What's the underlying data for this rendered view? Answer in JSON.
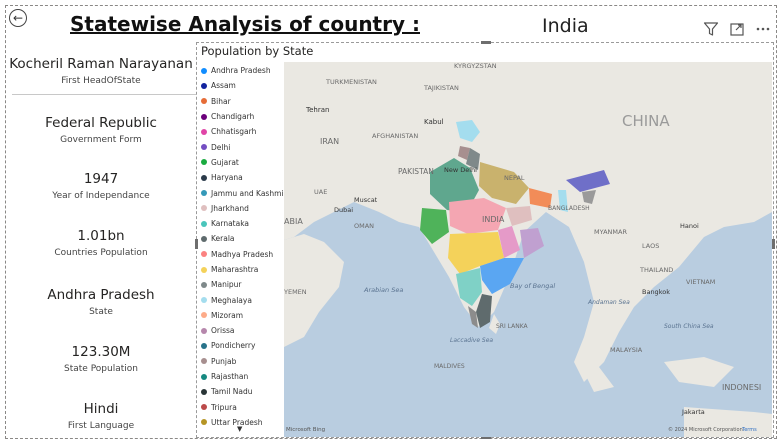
{
  "header": {
    "title": "Statewise Analysis of country :",
    "country": "India"
  },
  "cards": [
    {
      "value": "Kocheril Raman Narayanan",
      "label": "First HeadOfState"
    },
    {
      "value": "Federal Republic",
      "label": "Government Form"
    },
    {
      "value": "1947",
      "label": "Year of Independance"
    },
    {
      "value": "1.01bn",
      "label": "Countries Population"
    },
    {
      "value": "Andhra Pradesh",
      "label": "State"
    },
    {
      "value": "123.30M",
      "label": "State Population"
    },
    {
      "value": "Hindi",
      "label": "First Language"
    }
  ],
  "map": {
    "title": "Population by State",
    "legend": [
      {
        "label": "Andhra Pradesh",
        "color": "#118DFF"
      },
      {
        "label": "Assam",
        "color": "#12239E"
      },
      {
        "label": "Bihar",
        "color": "#E66C37"
      },
      {
        "label": "Chandigarh",
        "color": "#6B007B"
      },
      {
        "label": "Chhatisgarh",
        "color": "#E044A7"
      },
      {
        "label": "Delhi",
        "color": "#744EC2"
      },
      {
        "label": "Gujarat",
        "color": "#1AAB40"
      },
      {
        "label": "Haryana",
        "color": "#2B3A4A"
      },
      {
        "label": "Jammu and Kashmir",
        "color": "#3599B8"
      },
      {
        "label": "Jharkhand",
        "color": "#DFBFBF"
      },
      {
        "label": "Karnataka",
        "color": "#4AC5BB"
      },
      {
        "label": "Kerala",
        "color": "#5F6B6D"
      },
      {
        "label": "Madhya Pradesh",
        "color": "#FB8281"
      },
      {
        "label": "Maharashtra",
        "color": "#F4D25A"
      },
      {
        "label": "Manipur",
        "color": "#7F898A"
      },
      {
        "label": "Meghalaya",
        "color": "#A4DDEE"
      },
      {
        "label": "Mizoram",
        "color": "#FDAB89"
      },
      {
        "label": "Orissa",
        "color": "#B687AC"
      },
      {
        "label": "Pondicherry",
        "color": "#28738A"
      },
      {
        "label": "Punjab",
        "color": "#A78F8F"
      },
      {
        "label": "Rajasthan",
        "color": "#168980"
      },
      {
        "label": "Tamil Nadu",
        "color": "#293537"
      },
      {
        "label": "Tripura",
        "color": "#BB4A4A"
      },
      {
        "label": "Uttar Pradesh",
        "color": "#B59525"
      }
    ],
    "more_glyph": "▼",
    "places": {
      "kyrgyzstan": "KYRGYZSTAN",
      "turkmenistan": "TURKMENISTAN",
      "tajikistan": "TAJIKISTAN",
      "tehran": "Tehran",
      "kabul": "Kabul",
      "afghanistan": "AFGHANISTAN",
      "iran": "IRAN",
      "china": "CHINA",
      "pakistan": "PAKISTAN",
      "new_delhi": "New Delhi",
      "nepal": "NEPAL",
      "india": "INDIA",
      "dubai": "Dubai",
      "muscat": "Muscat",
      "uae": "UAE",
      "oman": "OMAN",
      "saudi": "ABIA",
      "bangladesh": "BANGLADESH",
      "myanmar": "MYANMAR",
      "laos": "LAOS",
      "hanoi": "Hanoi",
      "thailand": "THAILAND",
      "bangkok": "Bangkok",
      "vietnam": "VIETNAM",
      "yemen": "YEMEN",
      "arabian_sea": "Arabian Sea",
      "bay_of_bengal": "Bay of Bengal",
      "andaman_sea": "Andaman Sea",
      "south_china_sea": "South China Sea",
      "sri_lanka": "SRI LANKA",
      "laccadive_sea": "Laccadive Sea",
      "maldives": "MALDIVES",
      "malaysia": "MALAYSIA",
      "indonesia": "INDONESI",
      "jakarta": "Jakarta",
      "bing": "Microsoft Bing",
      "copyright": "© 2024 Microsoft Corporation",
      "terms": "Terms"
    }
  }
}
